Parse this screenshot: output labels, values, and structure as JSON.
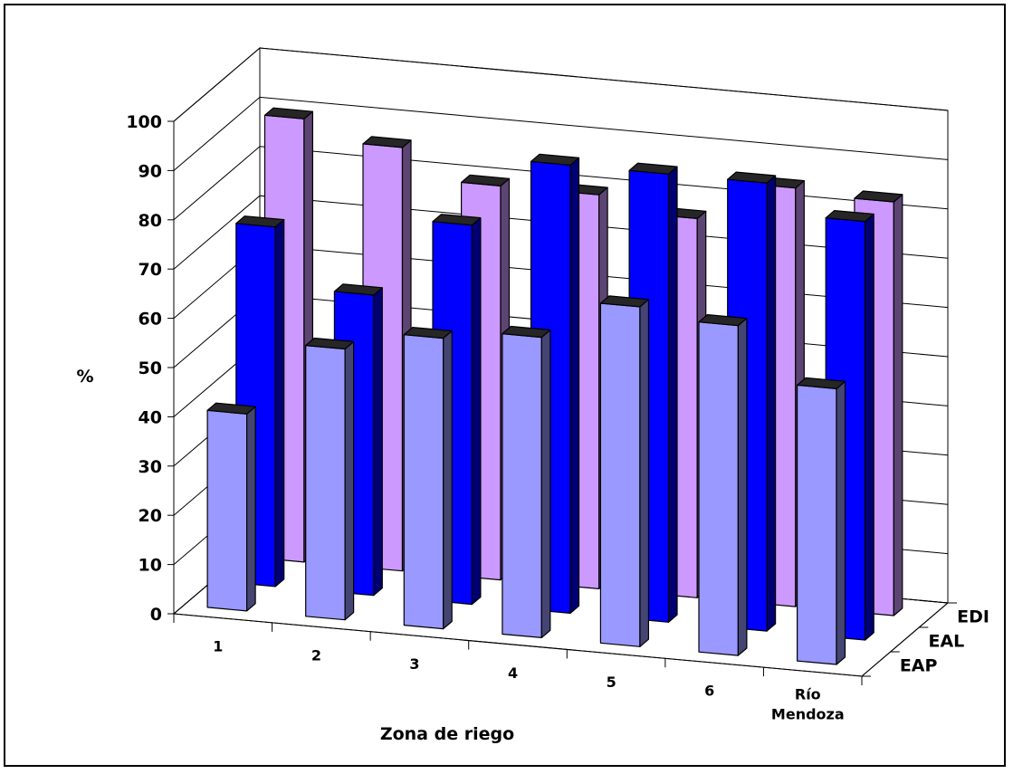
{
  "chart_data": {
    "type": "bar",
    "subtype": "3d-clustered-depth",
    "xlabel": "Zona de riego",
    "ylabel": "%",
    "ylim": [
      0,
      100
    ],
    "yticks": [
      0,
      10,
      20,
      30,
      40,
      50,
      60,
      70,
      80,
      90,
      100
    ],
    "grid": true,
    "categories": [
      "1",
      "2",
      "3",
      "4",
      "5",
      "6",
      "Río Mendoza"
    ],
    "series": [
      {
        "name": "EAP",
        "values": [
          40,
          55,
          59,
          61,
          69,
          67,
          56
        ]
      },
      {
        "name": "EAL",
        "values": [
          73,
          61,
          77,
          91,
          91,
          91,
          85
        ]
      },
      {
        "name": "EDI",
        "values": [
          90,
          86,
          80,
          80,
          77,
          85,
          84
        ]
      }
    ],
    "colors": {
      "EAP": "#9999ff",
      "EAL": "#0000ff",
      "EDI": "#cc99ff"
    }
  }
}
